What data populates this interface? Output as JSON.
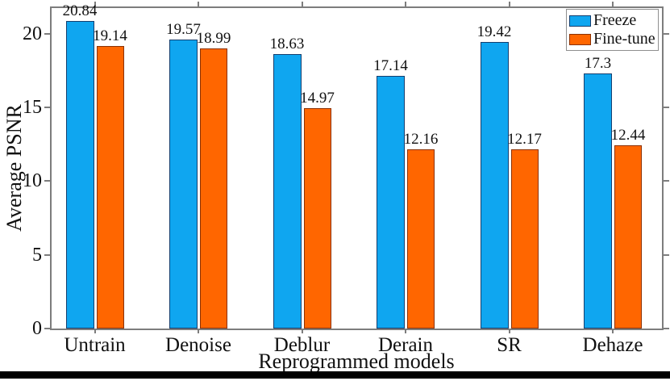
{
  "figure": {
    "background": "#ffffff",
    "axis_color": "#7d7d7d",
    "text_color": "#111111"
  },
  "chart_data": {
    "type": "bar",
    "title": "",
    "xlabel": "Reprogrammed models",
    "ylabel": "Average PSNR",
    "categories": [
      "Untrain",
      "Denoise",
      "Deblur",
      "Derain",
      "SR",
      "Dehaze"
    ],
    "series": [
      {
        "name": "Freeze",
        "color": "#0fa6f0",
        "edge_color": "#153e6e",
        "values": [
          20.84,
          19.57,
          18.63,
          17.14,
          19.42,
          17.3
        ],
        "labels": [
          "20.84",
          "19.57",
          "18.63",
          "17.14",
          "19.42",
          "17.3"
        ]
      },
      {
        "name": "Fine-tune",
        "color": "#ff6600",
        "edge_color": "#8b3103",
        "values": [
          19.14,
          18.99,
          14.97,
          12.16,
          12.17,
          12.44
        ],
        "labels": [
          "19.14",
          "18.99",
          "14.97",
          "12.16",
          "12.17",
          "12.44"
        ]
      }
    ],
    "yticks": [
      0,
      5,
      10,
      15,
      20
    ],
    "ylim": [
      0,
      21.73
    ],
    "grid": false,
    "legend_position": "top-right",
    "value_labels_shown": true
  }
}
